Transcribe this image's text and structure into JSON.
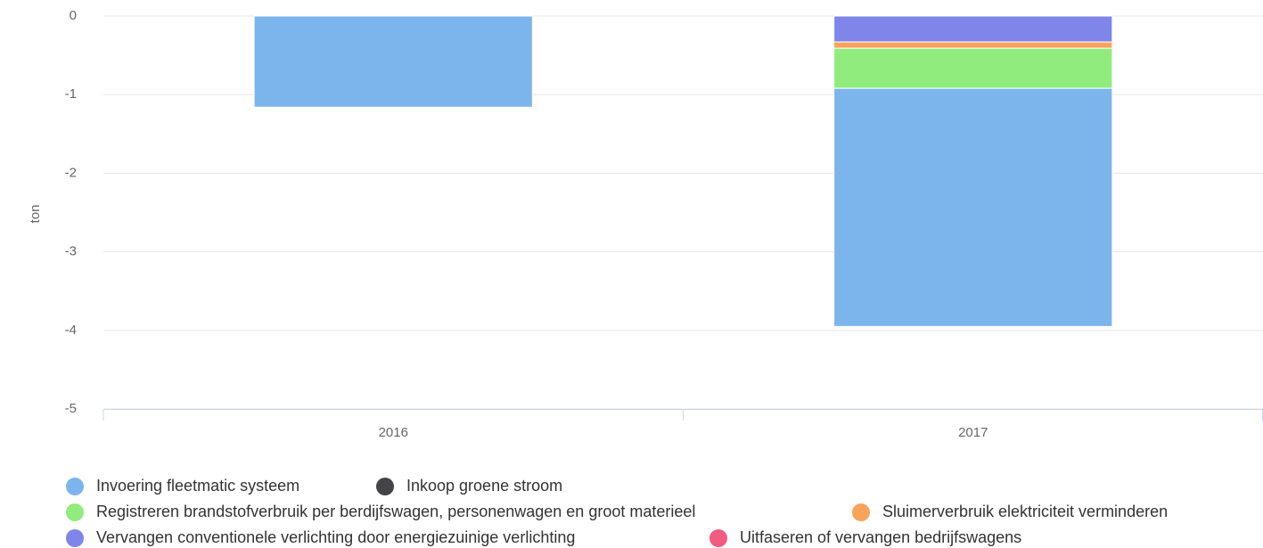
{
  "chart_data": {
    "type": "bar",
    "stacked": true,
    "y_label": "ton",
    "categories": [
      "2016",
      "2017"
    ],
    "series": [
      {
        "name": "Invoering fleetmatic systeem",
        "color": "#7cb5ec",
        "values": [
          -1.16,
          -3.03
        ]
      },
      {
        "name": "Inkoop groene stroom",
        "color": "#434348",
        "values": [
          null,
          null
        ]
      },
      {
        "name": "Registreren brandstofverbruik per berdijfswagen, personenwagen en groot materieel",
        "color": "#90ed7d",
        "values": [
          null,
          -0.51
        ]
      },
      {
        "name": "Sluimerverbruik elektriciteit verminderen",
        "color": "#f7a35c",
        "values": [
          null,
          -0.08
        ]
      },
      {
        "name": "Vervangen conventionele verlichting door energiezuinige verlichting",
        "color": "#8085e9",
        "values": [
          null,
          -0.33
        ]
      },
      {
        "name": "Uitfaseren of vervangen bedrijfswagens",
        "color": "#f15c80",
        "values": [
          null,
          null
        ]
      }
    ],
    "ylim": [
      -5,
      0
    ],
    "yticks": [
      0,
      -1,
      -2,
      -3,
      -4,
      -5
    ],
    "grid": true,
    "legend": "bottom"
  }
}
